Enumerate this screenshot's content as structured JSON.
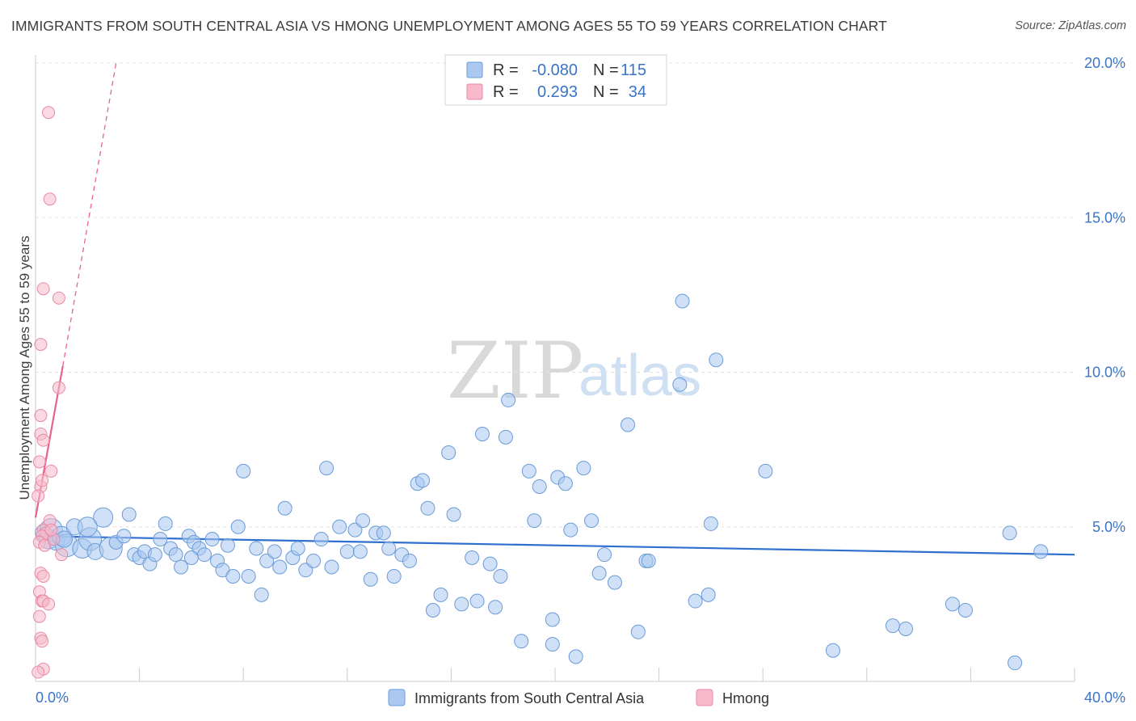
{
  "title": "IMMIGRANTS FROM SOUTH CENTRAL ASIA VS HMONG UNEMPLOYMENT AMONG AGES 55 TO 59 YEARS CORRELATION CHART",
  "source": "Source: ZipAtlas.com",
  "watermark": {
    "zip": "ZIP",
    "atlas": "atlas"
  },
  "legend": {
    "rows": [
      {
        "r_label": "R =",
        "r_value": "-0.080",
        "n_label": "N =",
        "n_value": "115",
        "color": "#aac8f0",
        "stroke": "#6b9bd8"
      },
      {
        "r_label": "R =",
        "r_value": "0.293",
        "n_label": "N =",
        "n_value": "34",
        "color": "#f7b9cb",
        "stroke": "#e88aa7"
      }
    ]
  },
  "bottom_legend": [
    {
      "label": "Immigrants from South Central Asia",
      "color": "#aac8f0",
      "stroke": "#6b9bd8"
    },
    {
      "label": "Hmong",
      "color": "#f7b9cb",
      "stroke": "#e88aa7"
    }
  ],
  "chart_data": {
    "type": "scatter",
    "title": "IMMIGRANTS FROM SOUTH CENTRAL ASIA VS HMONG UNEMPLOYMENT AMONG AGES 55 TO 59 YEARS CORRELATION CHART",
    "xlabel": "",
    "ylabel": "Unemployment Among Ages 55 to 59 years",
    "xlim": [
      0,
      40
    ],
    "ylim": [
      0,
      20
    ],
    "x_tick_labels": [
      "0.0%",
      "40.0%"
    ],
    "y_tick_labels": [
      "5.0%",
      "10.0%",
      "15.0%",
      "20.0%"
    ],
    "y_ticks": [
      5,
      10,
      15,
      20
    ],
    "grid": true,
    "legend_position": "top-center",
    "series": [
      {
        "name": "Immigrants from South Central Asia",
        "color": "#aac8f0",
        "stroke": "#6b9bd8",
        "trend": {
          "x": [
            0,
            40
          ],
          "y": [
            4.7,
            4.1
          ],
          "color": "#2f6fcf"
        },
        "points": [
          [
            0.3,
            4.8
          ],
          [
            0.5,
            4.6
          ],
          [
            0.6,
            4.9
          ],
          [
            0.8,
            4.5
          ],
          [
            1.0,
            4.7
          ],
          [
            1.2,
            4.4
          ],
          [
            1.5,
            5.0
          ],
          [
            1.8,
            4.3
          ],
          [
            2.1,
            4.6
          ],
          [
            2.3,
            4.2
          ],
          [
            2.6,
            5.3
          ],
          [
            2.9,
            4.3
          ],
          [
            3.1,
            4.5
          ],
          [
            3.4,
            4.7
          ],
          [
            3.6,
            5.4
          ],
          [
            3.8,
            4.1
          ],
          [
            4.0,
            4.0
          ],
          [
            4.2,
            4.2
          ],
          [
            4.4,
            3.8
          ],
          [
            4.6,
            4.1
          ],
          [
            4.8,
            4.6
          ],
          [
            5.0,
            5.1
          ],
          [
            5.2,
            4.3
          ],
          [
            5.4,
            4.1
          ],
          [
            5.6,
            3.7
          ],
          [
            5.9,
            4.7
          ],
          [
            6.1,
            4.5
          ],
          [
            6.3,
            4.3
          ],
          [
            6.5,
            4.1
          ],
          [
            6.8,
            4.6
          ],
          [
            7.0,
            3.9
          ],
          [
            7.2,
            3.6
          ],
          [
            7.4,
            4.4
          ],
          [
            7.6,
            3.4
          ],
          [
            7.8,
            5.0
          ],
          [
            8.0,
            6.8
          ],
          [
            8.2,
            3.4
          ],
          [
            8.5,
            4.3
          ],
          [
            8.7,
            2.8
          ],
          [
            8.9,
            3.9
          ],
          [
            9.2,
            4.2
          ],
          [
            9.4,
            3.7
          ],
          [
            9.6,
            5.6
          ],
          [
            9.9,
            4.0
          ],
          [
            10.1,
            4.3
          ],
          [
            10.4,
            3.6
          ],
          [
            10.7,
            3.9
          ],
          [
            11.0,
            4.6
          ],
          [
            11.2,
            6.9
          ],
          [
            11.4,
            3.7
          ],
          [
            11.7,
            5.0
          ],
          [
            12.0,
            4.2
          ],
          [
            12.3,
            4.9
          ],
          [
            12.6,
            5.2
          ],
          [
            12.9,
            3.3
          ],
          [
            13.1,
            4.8
          ],
          [
            13.4,
            4.8
          ],
          [
            13.6,
            4.3
          ],
          [
            13.8,
            3.4
          ],
          [
            14.1,
            4.1
          ],
          [
            14.4,
            3.9
          ],
          [
            14.7,
            6.4
          ],
          [
            14.9,
            6.5
          ],
          [
            15.1,
            5.6
          ],
          [
            15.3,
            2.3
          ],
          [
            15.6,
            2.8
          ],
          [
            15.9,
            7.4
          ],
          [
            16.1,
            5.4
          ],
          [
            16.4,
            2.5
          ],
          [
            16.8,
            4.0
          ],
          [
            17.0,
            2.6
          ],
          [
            17.2,
            8.0
          ],
          [
            17.5,
            3.8
          ],
          [
            17.7,
            2.4
          ],
          [
            17.9,
            3.4
          ],
          [
            18.1,
            7.9
          ],
          [
            18.2,
            9.1
          ],
          [
            18.7,
            1.3
          ],
          [
            19.0,
            6.8
          ],
          [
            19.2,
            5.2
          ],
          [
            19.4,
            6.3
          ],
          [
            19.9,
            1.2
          ],
          [
            19.9,
            2.0
          ],
          [
            20.1,
            6.6
          ],
          [
            20.4,
            6.4
          ],
          [
            20.6,
            4.9
          ],
          [
            20.8,
            0.8
          ],
          [
            21.1,
            6.9
          ],
          [
            21.4,
            5.2
          ],
          [
            21.7,
            3.5
          ],
          [
            21.9,
            4.1
          ],
          [
            22.3,
            3.2
          ],
          [
            22.8,
            8.3
          ],
          [
            23.2,
            1.6
          ],
          [
            23.5,
            3.9
          ],
          [
            23.6,
            3.9
          ],
          [
            24.9,
            12.3
          ],
          [
            24.8,
            9.6
          ],
          [
            25.4,
            2.6
          ],
          [
            25.9,
            2.8
          ],
          [
            26.2,
            10.4
          ],
          [
            26.0,
            5.1
          ],
          [
            28.1,
            6.8
          ],
          [
            30.7,
            1.0
          ],
          [
            33.0,
            1.8
          ],
          [
            33.5,
            1.7
          ],
          [
            35.3,
            2.5
          ],
          [
            35.8,
            2.3
          ],
          [
            37.5,
            4.8
          ],
          [
            37.7,
            0.6
          ],
          [
            38.7,
            4.2
          ],
          [
            1.1,
            4.6
          ],
          [
            2.0,
            5.0
          ],
          [
            6.0,
            4.0
          ],
          [
            12.5,
            4.2
          ]
        ]
      },
      {
        "name": "Hmong",
        "color": "#f7b9cb",
        "stroke": "#e88aa7",
        "trend": {
          "x": [
            0,
            1.05
          ],
          "y": [
            5.3,
            10.2
          ],
          "color": "#e8628f",
          "dashed_to": [
            3.1,
            20.0
          ]
        },
        "points": [
          [
            0.5,
            18.4
          ],
          [
            0.55,
            15.6
          ],
          [
            0.3,
            12.7
          ],
          [
            0.9,
            12.4
          ],
          [
            0.2,
            10.9
          ],
          [
            0.9,
            9.5
          ],
          [
            0.2,
            8.6
          ],
          [
            0.2,
            8.0
          ],
          [
            0.3,
            7.8
          ],
          [
            0.6,
            6.8
          ],
          [
            0.15,
            7.1
          ],
          [
            0.2,
            6.3
          ],
          [
            0.25,
            6.5
          ],
          [
            0.1,
            6.0
          ],
          [
            0.55,
            5.2
          ],
          [
            0.3,
            4.9
          ],
          [
            0.4,
            4.8
          ],
          [
            0.25,
            4.7
          ],
          [
            0.15,
            4.5
          ],
          [
            0.35,
            4.4
          ],
          [
            0.7,
            4.6
          ],
          [
            1.0,
            4.1
          ],
          [
            0.2,
            3.5
          ],
          [
            0.3,
            3.4
          ],
          [
            0.15,
            2.9
          ],
          [
            0.25,
            2.6
          ],
          [
            0.3,
            2.6
          ],
          [
            0.5,
            2.5
          ],
          [
            0.2,
            1.4
          ],
          [
            0.25,
            1.3
          ],
          [
            0.15,
            2.1
          ],
          [
            0.3,
            0.4
          ],
          [
            0.1,
            0.3
          ],
          [
            0.6,
            4.9
          ]
        ]
      }
    ]
  }
}
